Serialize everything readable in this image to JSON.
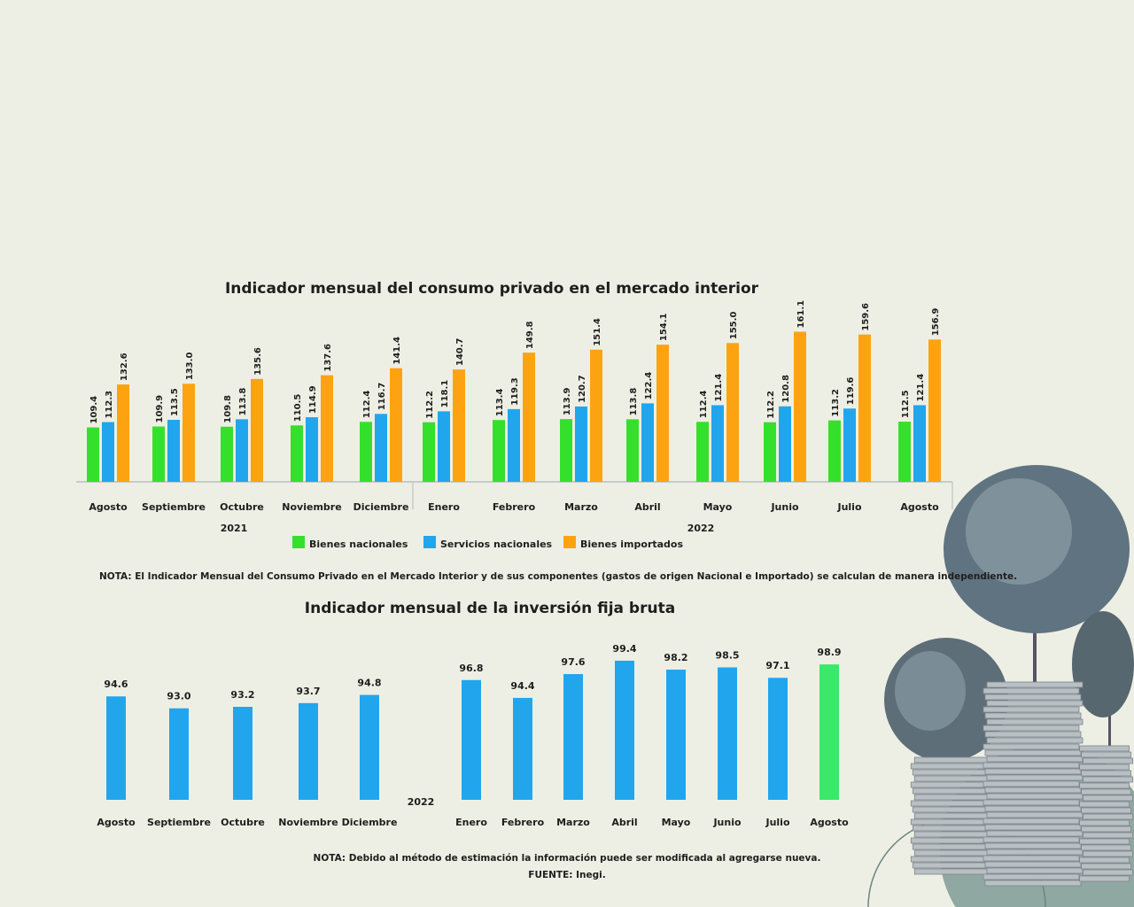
{
  "colors": {
    "bienes_nacionales": "#35e02c",
    "servicios_nacionales": "#21a6ee",
    "bienes_importados": "#fda312",
    "highlight": "#3be86a",
    "background": "#eeefe4"
  },
  "chart_data": [
    {
      "type": "bar",
      "title": "Indicador mensual del consumo privado en el mercado interior",
      "categories": [
        "Agosto",
        "Septiembre",
        "Octubre",
        "Noviembre",
        "Diciembre",
        "Enero",
        "Febrero",
        "Marzo",
        "Abril",
        "Mayo",
        "Junio",
        "Julio",
        "Agosto"
      ],
      "years": [
        "2021",
        "2022"
      ],
      "series": [
        {
          "name": "Bienes nacionales",
          "values": [
            109.4,
            109.9,
            109.8,
            110.5,
            112.4,
            112.2,
            113.4,
            113.9,
            113.8,
            112.4,
            112.2,
            113.2,
            112.5
          ]
        },
        {
          "name": "Servicios nacionales",
          "values": [
            112.3,
            113.5,
            113.8,
            114.9,
            116.7,
            118.1,
            119.3,
            120.7,
            122.4,
            121.4,
            120.8,
            119.6,
            121.4
          ]
        },
        {
          "name": "Bienes importados",
          "values": [
            132.6,
            133.0,
            135.6,
            137.6,
            141.4,
            140.7,
            149.8,
            151.4,
            154.1,
            155.0,
            161.1,
            159.6,
            156.9
          ]
        }
      ],
      "value_labels": [
        [
          "109.4",
          "109.9",
          "109.8",
          "110.5",
          "112.4",
          "112.2",
          "113.4",
          "113.9",
          "113.8",
          "112.4",
          "112.2",
          "113.2",
          "112.5"
        ],
        [
          "112.3",
          "113.5",
          "113.8",
          "114.9",
          "116.7",
          "118.1",
          "119.3",
          "120.7",
          "122.4",
          "121.4",
          "120.8",
          "119.6",
          "121.4"
        ],
        [
          "132.6",
          "133.0",
          "135.6",
          "137.6",
          "141.4",
          "140.7",
          "149.8",
          "151.4",
          "154.1",
          "155.0",
          "161.1",
          "159.6",
          "156.9"
        ]
      ],
      "ylim": [
        80,
        165
      ],
      "legend_position": "bottom",
      "note": "NOTA: El Indicador Mensual del Consumo Privado en el Mercado Interior y de sus componentes (gastos de origen Nacional e Importado) se calculan de manera independiente."
    },
    {
      "type": "bar",
      "title": "Indicador mensual de la inversión fija bruta",
      "categories": [
        "Agosto",
        "Septiembre",
        "Octubre",
        "Noviembre",
        "Diciembre",
        "Enero",
        "Febrero",
        "Marzo",
        "Abril",
        "Mayo",
        "Junio",
        "Julio",
        "Agosto"
      ],
      "year_label": "2022",
      "values": [
        94.6,
        93.0,
        93.2,
        93.7,
        94.8,
        96.8,
        94.4,
        97.6,
        99.4,
        98.2,
        98.5,
        97.1,
        98.9
      ],
      "value_labels": [
        "94.6",
        "93.0",
        "93.2",
        "93.7",
        "94.8",
        "96.8",
        "94.4",
        "97.6",
        "99.4",
        "98.2",
        "98.5",
        "97.1",
        "98.9"
      ],
      "highlight_index": 12,
      "ylim": [
        80.7,
        100
      ],
      "note": "NOTA: Debido al método de estimación la información puede ser modificada al agregarse nueva.",
      "source": "FUENTE: Inegi."
    }
  ]
}
